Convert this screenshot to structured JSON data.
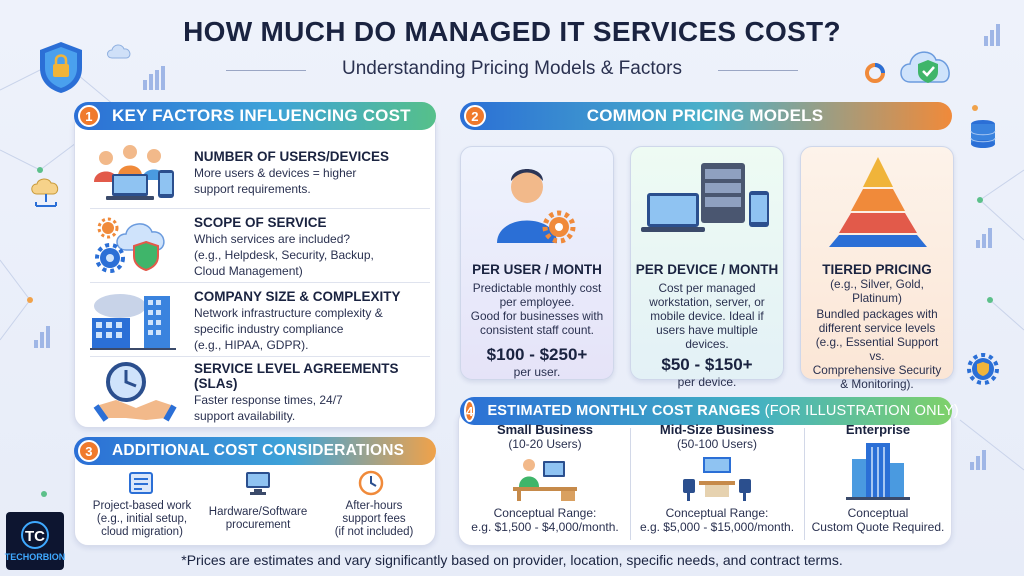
{
  "header": {
    "title": "HOW MUCH DO MANAGED IT SERVICES COST?",
    "subtitle": "Understanding Pricing Models & Factors"
  },
  "section1": {
    "number": "1",
    "title": "KEY FACTORS INFLUENCING COST",
    "items": [
      {
        "heading": "NUMBER OF USERS/DEVICES",
        "desc1": "More users & devices = higher",
        "desc2": "support requirements.",
        "desc3": ""
      },
      {
        "heading": "SCOPE OF SERVICE",
        "desc1": "Which services are included?",
        "desc2": "(e.g., Helpdesk, Security, Backup,",
        "desc3": "Cloud Management)"
      },
      {
        "heading": "COMPANY SIZE & COMPLEXITY",
        "desc1": "Network infrastructure complexity &",
        "desc2": "specific industry compliance",
        "desc3": "(e.g., HIPAA, GDPR)."
      },
      {
        "heading": "SERVICE LEVEL AGREEMENTS (SLAs)",
        "desc1": "Faster response times, 24/7",
        "desc2": "support availability.",
        "desc3": ""
      }
    ]
  },
  "section2": {
    "number": "2",
    "title": "COMMON PRICING MODELS",
    "cards": [
      {
        "heading": "PER USER / MONTH",
        "desc": [
          "Predictable monthly cost",
          "per employee.",
          "Good for businesses with",
          "consistent staff count."
        ],
        "price": "$100 - $250+",
        "per": "per user."
      },
      {
        "heading": "PER DEVICE / MONTH",
        "desc": [
          "Cost per managed",
          "workstation, server, or",
          "mobile device. Ideal if",
          "users have multiple",
          "devices."
        ],
        "price": "$50 - $150+",
        "per": "per device."
      },
      {
        "heading": "TIERED PRICING",
        "desc": [
          "(e.g., Silver, Gold, Platinum)",
          "Bundled packages with",
          "different service levels",
          "(e.g., Essential Support vs.",
          "Comprehensive Security",
          "& Monitoring)."
        ],
        "price": "$ - $$$",
        "per": ""
      }
    ]
  },
  "section3": {
    "number": "3",
    "title": "ADDITIONAL COST CONSIDERATIONS",
    "items": [
      {
        "l1": "Project-based work",
        "l2": "(e.g., initial setup,",
        "l3": "cloud migration)"
      },
      {
        "l1": "Hardware/Software",
        "l2": "procurement",
        "l3": ""
      },
      {
        "l1": "After-hours",
        "l2": "support fees",
        "l3": "(if not included)"
      }
    ]
  },
  "section4": {
    "number": "4",
    "title_bold": "ESTIMATED MONTHLY COST RANGES",
    "title_light": " (FOR ILLUSTRATION ONLY)",
    "columns": [
      {
        "title": "Small Business",
        "sub": "(10-20 Users)",
        "r1": "Conceptual Range:",
        "r2": "e.g. $1,500 - $4,000/month."
      },
      {
        "title": "Mid-Size Business",
        "sub": "(50-100 Users)",
        "r1": "Conceptual Range:",
        "r2": "e.g. $5,000 - $15,000/month."
      },
      {
        "title": "Enterprise",
        "sub": "",
        "r1": "Conceptual",
        "r2": "Custom Quote Required."
      }
    ]
  },
  "footer": "*Prices are estimates and vary significantly based on provider, location, specific needs, and contract terms.",
  "logo": {
    "mark": "TC",
    "name": "TECHORBION"
  },
  "colors": {
    "orange": "#f07a2c",
    "blue": "#2b6fd6",
    "green": "#56c08a",
    "navy": "#1a2340"
  }
}
